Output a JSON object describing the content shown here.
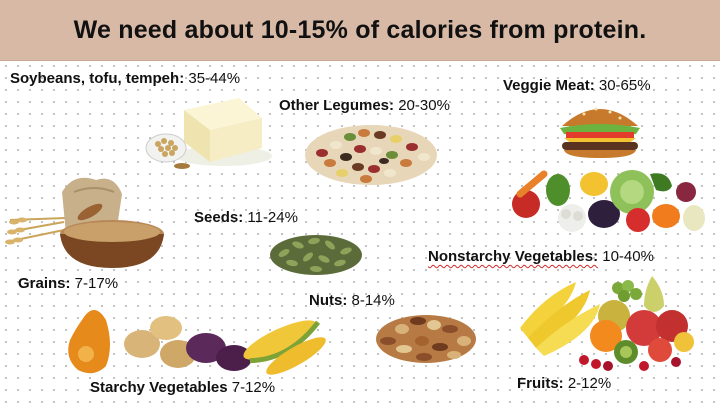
{
  "title": "We need about 10-15% of calories from protein.",
  "items": [
    {
      "name": "Soybeans, tofu, tempeh:",
      "value": " 35-44%"
    },
    {
      "name": "Other Legumes:",
      "value": " 20-30%"
    },
    {
      "name": "Veggie Meat:",
      "value": " 30-65%"
    },
    {
      "name": "Seeds:",
      "value": " 11-24%"
    },
    {
      "name": "Grains:",
      "value": " 7-17%"
    },
    {
      "name": "Nonstarchy Vegetables:",
      "value": " 10-40%"
    },
    {
      "name": "Nuts:",
      "value": " 8-14%"
    },
    {
      "name": "Starchy Vegetables",
      "value": " 7-12%"
    },
    {
      "name": "Fruits:",
      "value": " 2-12%"
    }
  ],
  "colors": {
    "banner": "#d7b9a6",
    "text": "#111111",
    "spell_underline": "#d12a2a"
  },
  "images": [
    "tofu-soybeans-image",
    "legumes-image",
    "burger-image",
    "seeds-image",
    "grains-image",
    "vegetables-image",
    "nuts-image",
    "starchy-vegetables-image",
    "fruits-image"
  ]
}
